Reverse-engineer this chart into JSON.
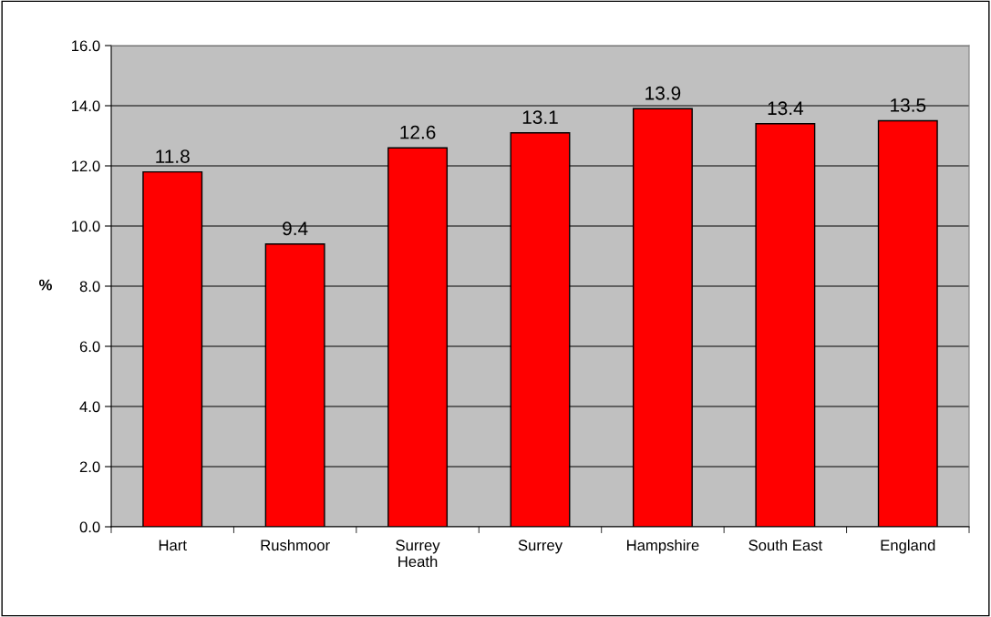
{
  "chart_data": {
    "type": "bar",
    "ylabel": "%",
    "categories": [
      "Hart",
      "Rushmoor",
      "Surrey\nHeath",
      "Surrey",
      "Hampshire",
      "South East",
      "England"
    ],
    "values": [
      11.8,
      9.4,
      12.6,
      13.1,
      13.9,
      13.4,
      13.5
    ],
    "color": "#ff0000",
    "ylim": [
      0,
      16
    ],
    "yticks": [
      {
        "value": 0,
        "label": "0.0"
      },
      {
        "value": 2,
        "label": "2.0"
      },
      {
        "value": 4,
        "label": "4.0"
      },
      {
        "value": 6,
        "label": "6.0"
      },
      {
        "value": 8,
        "label": "8.0"
      },
      {
        "value": 10,
        "label": "10.0"
      },
      {
        "value": 12,
        "label": "12.0"
      },
      {
        "value": 14,
        "label": "14.0"
      },
      {
        "value": 16,
        "label": "16.0"
      }
    ],
    "grid": "y",
    "data_labels": true
  }
}
